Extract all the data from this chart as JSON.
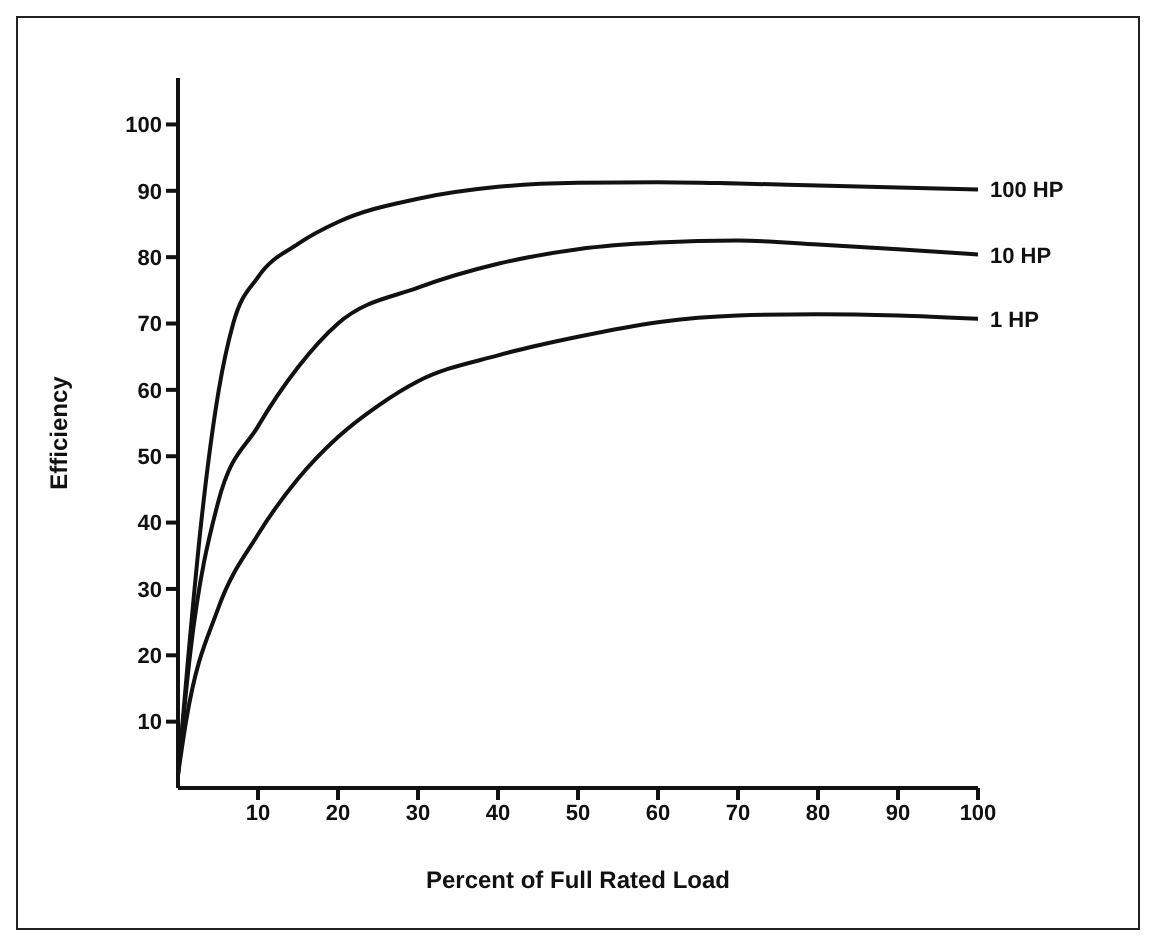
{
  "chart_data": {
    "type": "line",
    "xlabel": "Percent of Full Rated Load",
    "ylabel": "Efficiency",
    "xlim": [
      0,
      100
    ],
    "ylim": [
      0,
      107
    ],
    "xticks": [
      10,
      20,
      30,
      40,
      50,
      60,
      70,
      80,
      90,
      100
    ],
    "yticks": [
      10,
      20,
      30,
      40,
      50,
      60,
      70,
      80,
      90,
      100
    ],
    "marker": "none",
    "line_style": "solid",
    "series": [
      {
        "name": "100 HP",
        "color": "#111111",
        "x": [
          0,
          1.3,
          2.9,
          5.1,
          6.9,
          10,
          15,
          20,
          30,
          40,
          50,
          60,
          70,
          80,
          90,
          100
        ],
        "values": [
          2,
          20,
          40,
          60,
          70,
          77,
          82,
          85.3,
          88.8,
          90.6,
          91.2,
          91.3,
          91.1,
          90.8,
          90.5,
          90.2
        ]
      },
      {
        "name": "10 HP",
        "color": "#111111",
        "x": [
          0,
          1.5,
          5,
          10,
          15,
          20,
          30,
          40,
          50,
          60,
          70,
          80,
          90,
          100
        ],
        "values": [
          2,
          20,
          43,
          54.5,
          63.4,
          70,
          75.4,
          79,
          81.2,
          82.2,
          82.5,
          81.9,
          81.2,
          80.4
        ]
      },
      {
        "name": "1 HP",
        "color": "#111111",
        "x": [
          0,
          1,
          5,
          10,
          15,
          20,
          25,
          30,
          40,
          50,
          60,
          70,
          80,
          90,
          100
        ],
        "values": [
          2,
          10,
          27,
          38.2,
          46.6,
          52.9,
          57.6,
          61.3,
          65.2,
          68,
          70.2,
          71.2,
          71.4,
          71.2,
          70.7
        ]
      }
    ]
  }
}
